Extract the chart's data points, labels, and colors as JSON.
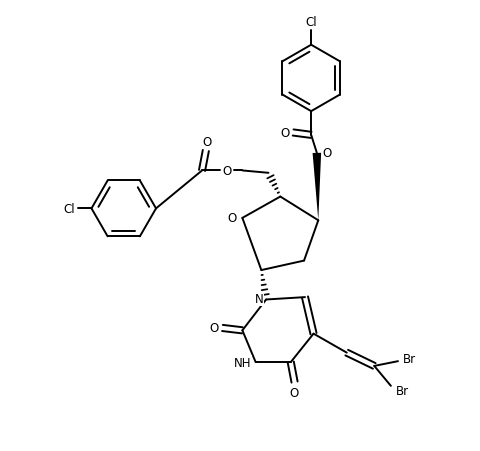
{
  "background_color": "#ffffff",
  "line_color": "#000000",
  "lw": 1.4,
  "fig_width": 4.8,
  "fig_height": 4.52,
  "dpi": 100,
  "xlim": [
    0,
    10
  ],
  "ylim": [
    0,
    9.4
  ]
}
